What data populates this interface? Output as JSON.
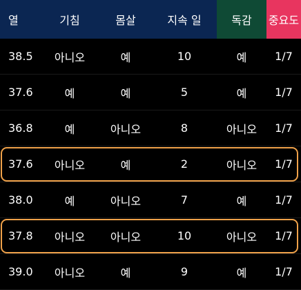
{
  "colors": {
    "header_blue": "#0b2652",
    "header_green": "#0f4a35",
    "header_pink": "#e8355f",
    "highlight_orange": "#f0a24a",
    "background": "#000000"
  },
  "headers": [
    "열",
    "기침",
    "몸살",
    "지속 일",
    "독감",
    "중요도"
  ],
  "rows": [
    [
      "38.5",
      "아니오",
      "예",
      "10",
      "예",
      "1/7"
    ],
    [
      "37.6",
      "예",
      "예",
      "5",
      "예",
      "1/7"
    ],
    [
      "36.8",
      "예",
      "아니오",
      "8",
      "아니오",
      "1/7"
    ],
    [
      "37.6",
      "아니오",
      "예",
      "2",
      "아니오",
      "1/7"
    ],
    [
      "38.0",
      "예",
      "아니오",
      "7",
      "예",
      "1/7"
    ],
    [
      "37.8",
      "아니오",
      "아니오",
      "10",
      "아니오",
      "1/7"
    ],
    [
      "39.0",
      "아니오",
      "예",
      "9",
      "예",
      "1/7"
    ]
  ],
  "highlighted_rows": [
    3,
    5
  ]
}
